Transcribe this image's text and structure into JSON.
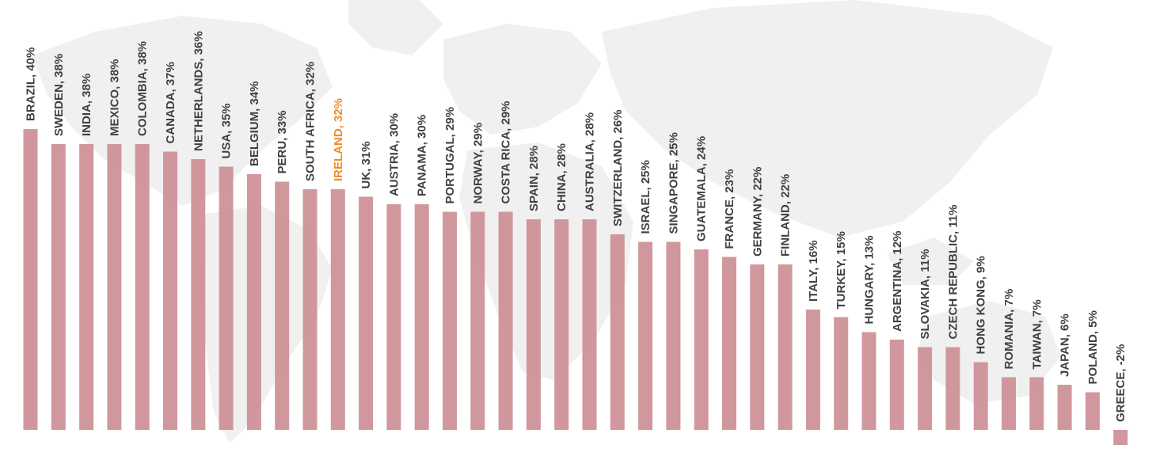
{
  "chart_data": {
    "type": "bar",
    "title": "",
    "xlabel": "",
    "ylabel": "",
    "ylim": [
      -2,
      40
    ],
    "grid": false,
    "legend": "none",
    "label_format": "{category}, {value}%",
    "bar_color": "#cc8f95",
    "label_color": "#404040",
    "highlight_color": "#f08c2a",
    "highlight_category": "IRELAND",
    "background": "faint grey world map",
    "categories": [
      "BRAZIL",
      "SWEDEN",
      "INDIA",
      "MEXICO",
      "COLOMBIA",
      "CANADA",
      "NETHERLANDS",
      "USA",
      "BELGIUM",
      "PERU",
      "SOUTH AFRICA",
      "IRELAND",
      "UK",
      "AUSTRIA",
      "PANAMA",
      "PORTUGAL",
      "NORWAY",
      "COSTA RICA",
      "SPAIN",
      "CHINA",
      "AUSTRALIA",
      "SWITZERLAND",
      "ISRAEL",
      "SINGAPORE",
      "GUATEMALA",
      "FRANCE",
      "GERMANY",
      "FINLAND",
      "ITALY",
      "TURKEY",
      "HUNGARY",
      "ARGENTINA",
      "SLOVAKIA",
      "CZECH REPUBLIC",
      "HONG KONG",
      "ROMANIA",
      "TAIWAN",
      "JAPAN",
      "POLAND",
      "GREECE"
    ],
    "values": [
      40,
      38,
      38,
      38,
      38,
      37,
      36,
      35,
      34,
      33,
      32,
      32,
      31,
      30,
      30,
      29,
      29,
      29,
      28,
      28,
      28,
      26,
      25,
      25,
      24,
      23,
      22,
      22,
      16,
      15,
      13,
      12,
      11,
      11,
      9,
      7,
      7,
      6,
      5,
      -2
    ]
  }
}
